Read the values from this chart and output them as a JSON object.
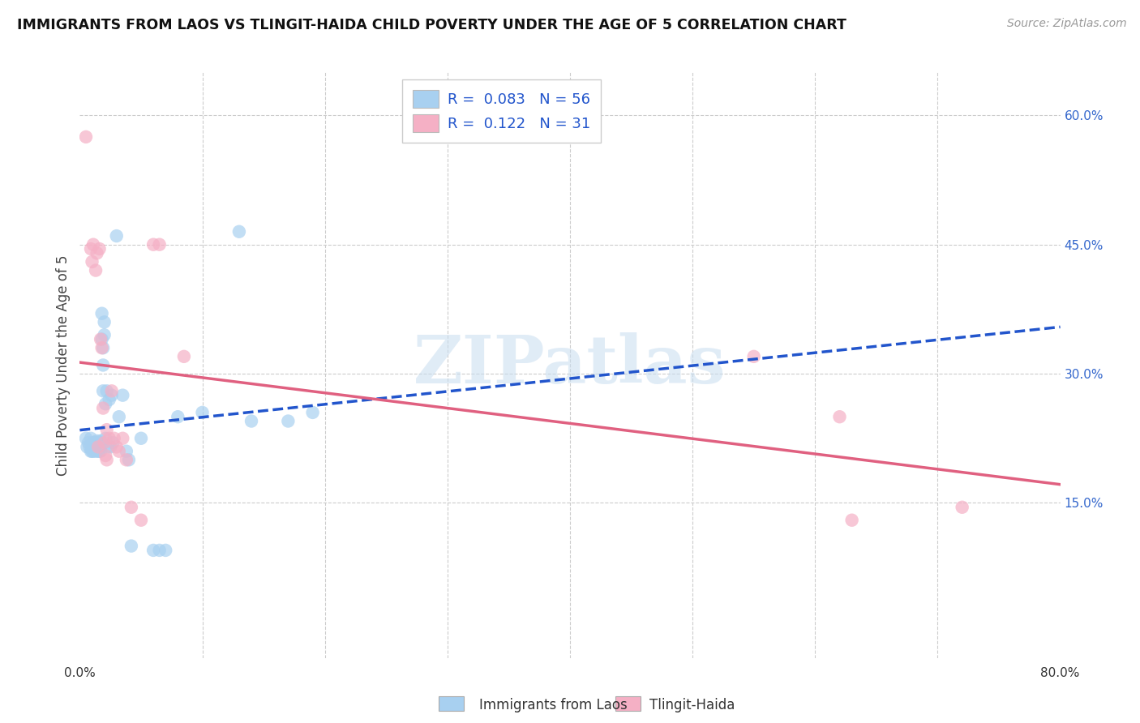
{
  "title": "IMMIGRANTS FROM LAOS VS TLINGIT-HAIDA CHILD POVERTY UNDER THE AGE OF 5 CORRELATION CHART",
  "source": "Source: ZipAtlas.com",
  "ylabel": "Child Poverty Under the Age of 5",
  "xlim": [
    0.0,
    0.8
  ],
  "ylim": [
    -0.03,
    0.65
  ],
  "yticks_right": [
    0.15,
    0.3,
    0.45,
    0.6
  ],
  "ytick_right_labels": [
    "15.0%",
    "30.0%",
    "45.0%",
    "60.0%"
  ],
  "legend_blue_label": "Immigrants from Laos",
  "legend_pink_label": "Tlingit-Haida",
  "R_blue": 0.083,
  "N_blue": 56,
  "R_pink": 0.122,
  "N_pink": 31,
  "blue_color": "#a8d0f0",
  "pink_color": "#f5b0c5",
  "blue_line_color": "#2255cc",
  "pink_line_color": "#e06080",
  "watermark": "ZIPatlas",
  "blue_scatter_x": [
    0.005,
    0.006,
    0.007,
    0.008,
    0.009,
    0.009,
    0.01,
    0.01,
    0.011,
    0.011,
    0.012,
    0.012,
    0.013,
    0.013,
    0.013,
    0.014,
    0.014,
    0.015,
    0.015,
    0.016,
    0.016,
    0.016,
    0.017,
    0.017,
    0.017,
    0.018,
    0.018,
    0.019,
    0.019,
    0.019,
    0.02,
    0.02,
    0.021,
    0.021,
    0.022,
    0.023,
    0.024,
    0.025,
    0.026,
    0.027,
    0.03,
    0.032,
    0.035,
    0.038,
    0.04,
    0.042,
    0.05,
    0.06,
    0.065,
    0.07,
    0.08,
    0.1,
    0.13,
    0.14,
    0.17,
    0.19
  ],
  "blue_scatter_y": [
    0.225,
    0.215,
    0.22,
    0.215,
    0.21,
    0.225,
    0.21,
    0.215,
    0.21,
    0.22,
    0.215,
    0.22,
    0.21,
    0.215,
    0.22,
    0.215,
    0.222,
    0.21,
    0.215,
    0.21,
    0.215,
    0.22,
    0.21,
    0.215,
    0.222,
    0.34,
    0.37,
    0.33,
    0.31,
    0.28,
    0.36,
    0.345,
    0.265,
    0.225,
    0.28,
    0.215,
    0.27,
    0.215,
    0.275,
    0.22,
    0.46,
    0.25,
    0.275,
    0.21,
    0.2,
    0.1,
    0.225,
    0.095,
    0.095,
    0.095,
    0.25,
    0.255,
    0.465,
    0.245,
    0.245,
    0.255
  ],
  "pink_scatter_x": [
    0.005,
    0.009,
    0.01,
    0.011,
    0.013,
    0.014,
    0.015,
    0.016,
    0.017,
    0.018,
    0.019,
    0.02,
    0.021,
    0.022,
    0.022,
    0.024,
    0.026,
    0.028,
    0.03,
    0.032,
    0.035,
    0.038,
    0.042,
    0.05,
    0.06,
    0.065,
    0.085,
    0.55,
    0.62,
    0.63,
    0.72
  ],
  "pink_scatter_y": [
    0.575,
    0.445,
    0.43,
    0.45,
    0.42,
    0.44,
    0.215,
    0.445,
    0.34,
    0.33,
    0.26,
    0.22,
    0.205,
    0.2,
    0.235,
    0.225,
    0.28,
    0.225,
    0.215,
    0.21,
    0.225,
    0.2,
    0.145,
    0.13,
    0.45,
    0.45,
    0.32,
    0.32,
    0.25,
    0.13,
    0.145
  ]
}
